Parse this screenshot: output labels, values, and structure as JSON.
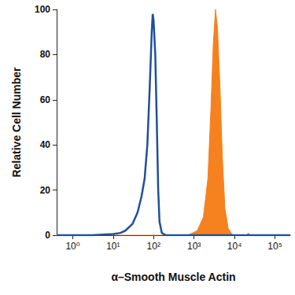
{
  "chart_data": {
    "type": "line",
    "x_label": "α–Smooth Muscle Actin",
    "y_label": "Relative Cell Number",
    "log": "x",
    "grid": false,
    "xlim": [
      0.4,
      240000
    ],
    "xticks": [
      {
        "value": 1,
        "label": "10⁰"
      },
      {
        "value": 10,
        "label": "10¹"
      },
      {
        "value": 100,
        "label": "10²"
      },
      {
        "value": 1000,
        "label": "10³"
      },
      {
        "value": 10000,
        "label": "10⁴"
      },
      {
        "value": 100000,
        "label": "10⁵"
      }
    ],
    "ylim": [
      0,
      100
    ],
    "yticks": [
      0,
      20,
      40,
      60,
      80,
      100
    ],
    "series": [
      {
        "type": "line",
        "color": "#1f4f9c",
        "x": [
          0.4,
          3,
          10,
          15,
          20,
          30,
          40,
          50,
          60,
          70,
          80,
          90,
          95,
          100,
          110,
          120,
          130,
          140,
          160,
          200,
          240000
        ],
        "values": [
          0,
          0,
          0.5,
          1,
          2,
          5,
          10,
          17,
          25,
          40,
          65,
          90,
          98,
          95,
          80,
          50,
          20,
          6,
          1,
          0,
          0
        ]
      },
      {
        "type": "area",
        "color": "#f5821f",
        "x": [
          0.4,
          700,
          1200,
          1700,
          2200,
          2600,
          3000,
          3400,
          3800,
          4400,
          5000,
          5800,
          7000,
          9000,
          20000,
          22000,
          25000,
          240000
        ],
        "values": [
          0,
          0,
          2,
          8,
          25,
          55,
          85,
          100,
          92,
          65,
          35,
          12,
          3,
          0,
          0,
          1,
          0,
          0
        ]
      }
    ]
  }
}
